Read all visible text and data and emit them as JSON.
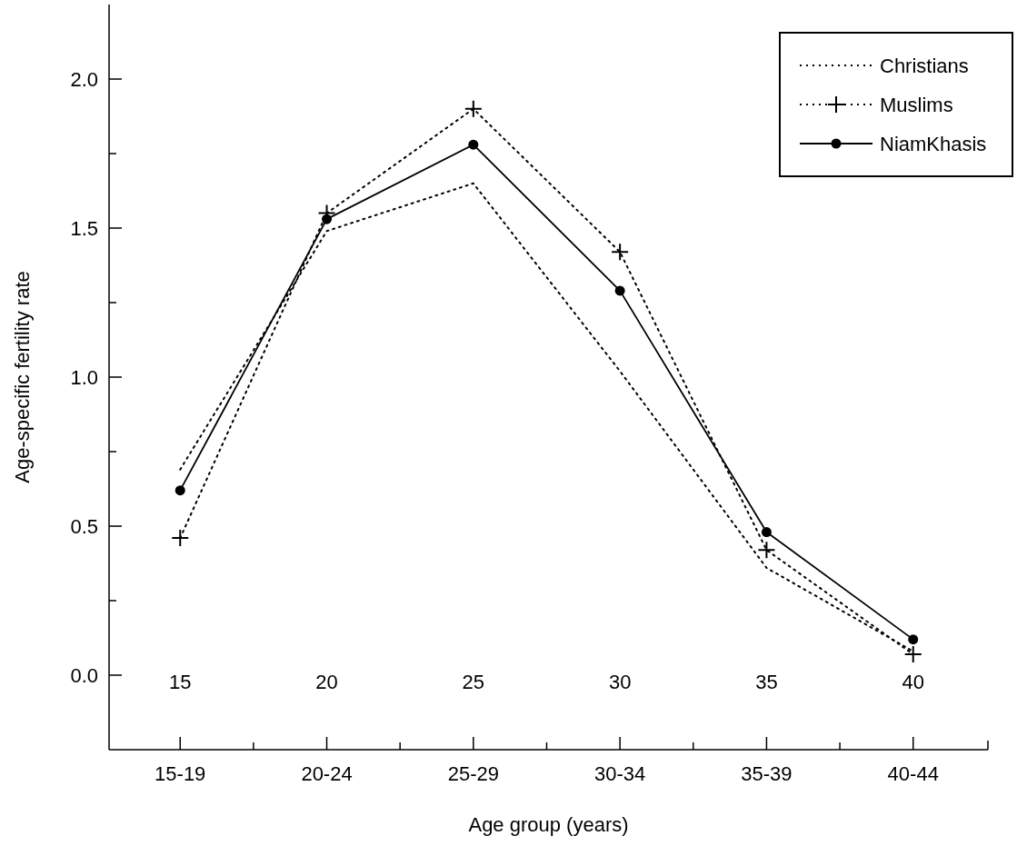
{
  "chart_data": {
    "type": "line",
    "xlabel": "Age group (years)",
    "ylabel": "Age-specific fertility rate",
    "categories": [
      "15-19",
      "20-24",
      "25-29",
      "30-34",
      "35-39",
      "40-44"
    ],
    "series": [
      {
        "name": "Christians",
        "color": "#000000",
        "marker": "none",
        "line_style": "dotted",
        "values": [
          0.69,
          1.49,
          1.65,
          1.02,
          0.36,
          0.08
        ]
      },
      {
        "name": "Muslims",
        "color": "#000000",
        "marker": "cross",
        "line_style": "dotted",
        "values": [
          0.46,
          1.55,
          1.9,
          1.42,
          0.42,
          0.07
        ]
      },
      {
        "name": "NiamKhasis",
        "color": "#000000",
        "marker": "circle",
        "line_style": "solid",
        "values": [
          0.62,
          1.53,
          1.78,
          1.29,
          0.48,
          0.12
        ]
      }
    ],
    "ylim": [
      -0.25,
      2.25
    ],
    "yticks": [
      {
        "value": 0,
        "label": "0.0"
      },
      {
        "value": 0.25,
        "label": null
      },
      0.5,
      {
        "value": 0.75,
        "label": null
      },
      {
        "value": 1,
        "label": "1.0"
      },
      {
        "value": 1.25,
        "label": null
      },
      1.5,
      {
        "value": 1.75,
        "label": null
      },
      {
        "value": 2,
        "label": "2.0"
      }
    ],
    "annotations": [
      "15",
      "20",
      "25",
      "30",
      "35",
      "40"
    ],
    "legend": "top right",
    "grid": false
  }
}
